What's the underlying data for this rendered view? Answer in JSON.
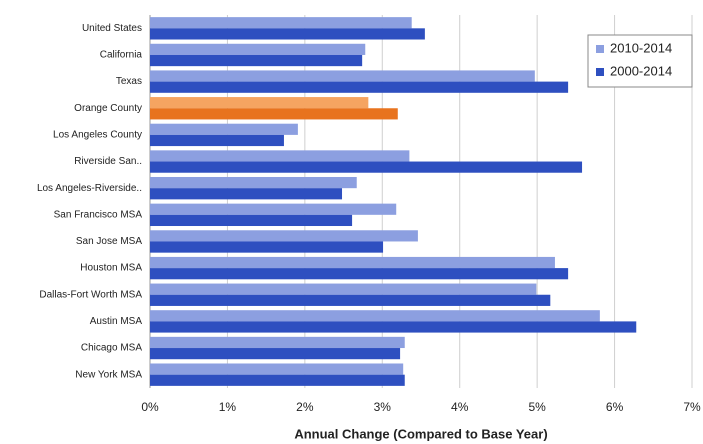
{
  "chart_data": {
    "type": "hbar",
    "categories": [
      "United States",
      "California",
      "Texas",
      "Orange County",
      "Los Angeles County",
      "Riverside San..",
      "Los Angeles-Riverside..",
      "San Francisco MSA",
      "San Jose MSA",
      "Houston MSA",
      "Dallas-Fort Worth MSA",
      "Austin MSA",
      "Chicago MSA",
      "New York MSA"
    ],
    "series": [
      {
        "name": "2010-2014",
        "color": "#8c9fe0",
        "colors": [
          "#8c9fe0",
          "#8c9fe0",
          "#8c9fe0",
          "#f5a461",
          "#8c9fe0",
          "#8c9fe0",
          "#8c9fe0",
          "#8c9fe0",
          "#8c9fe0",
          "#8c9fe0",
          "#8c9fe0",
          "#8c9fe0",
          "#8c9fe0",
          "#8c9fe0"
        ],
        "values": [
          3.38,
          2.78,
          4.97,
          2.82,
          1.91,
          3.35,
          2.67,
          3.18,
          3.46,
          5.23,
          4.99,
          5.81,
          3.29,
          3.27
        ]
      },
      {
        "name": "2000-2014",
        "color": "#2e4fc0",
        "colors": [
          "#2e4fc0",
          "#2e4fc0",
          "#2e4fc0",
          "#e8731e",
          "#2e4fc0",
          "#2e4fc0",
          "#2e4fc0",
          "#2e4fc0",
          "#2e4fc0",
          "#2e4fc0",
          "#2e4fc0",
          "#2e4fc0",
          "#2e4fc0",
          "#2e4fc0"
        ],
        "values": [
          3.55,
          2.74,
          5.4,
          3.2,
          1.73,
          5.58,
          2.48,
          2.61,
          3.01,
          5.4,
          5.17,
          6.28,
          3.23,
          3.29
        ]
      }
    ],
    "xlim": [
      0,
      7
    ],
    "xticks": [
      {
        "value": 0,
        "label": "0%"
      },
      {
        "value": 1,
        "label": "1%"
      },
      {
        "value": 2,
        "label": "2%"
      },
      {
        "value": 3,
        "label": "3%"
      },
      {
        "value": 4,
        "label": "4%"
      },
      {
        "value": 5,
        "label": "5%"
      },
      {
        "value": 6,
        "label": "6%"
      },
      {
        "value": 7,
        "label": "7%"
      }
    ],
    "x_label": "Annual Change (Compared to Base Year)",
    "grid": true,
    "legend": "upper right"
  }
}
